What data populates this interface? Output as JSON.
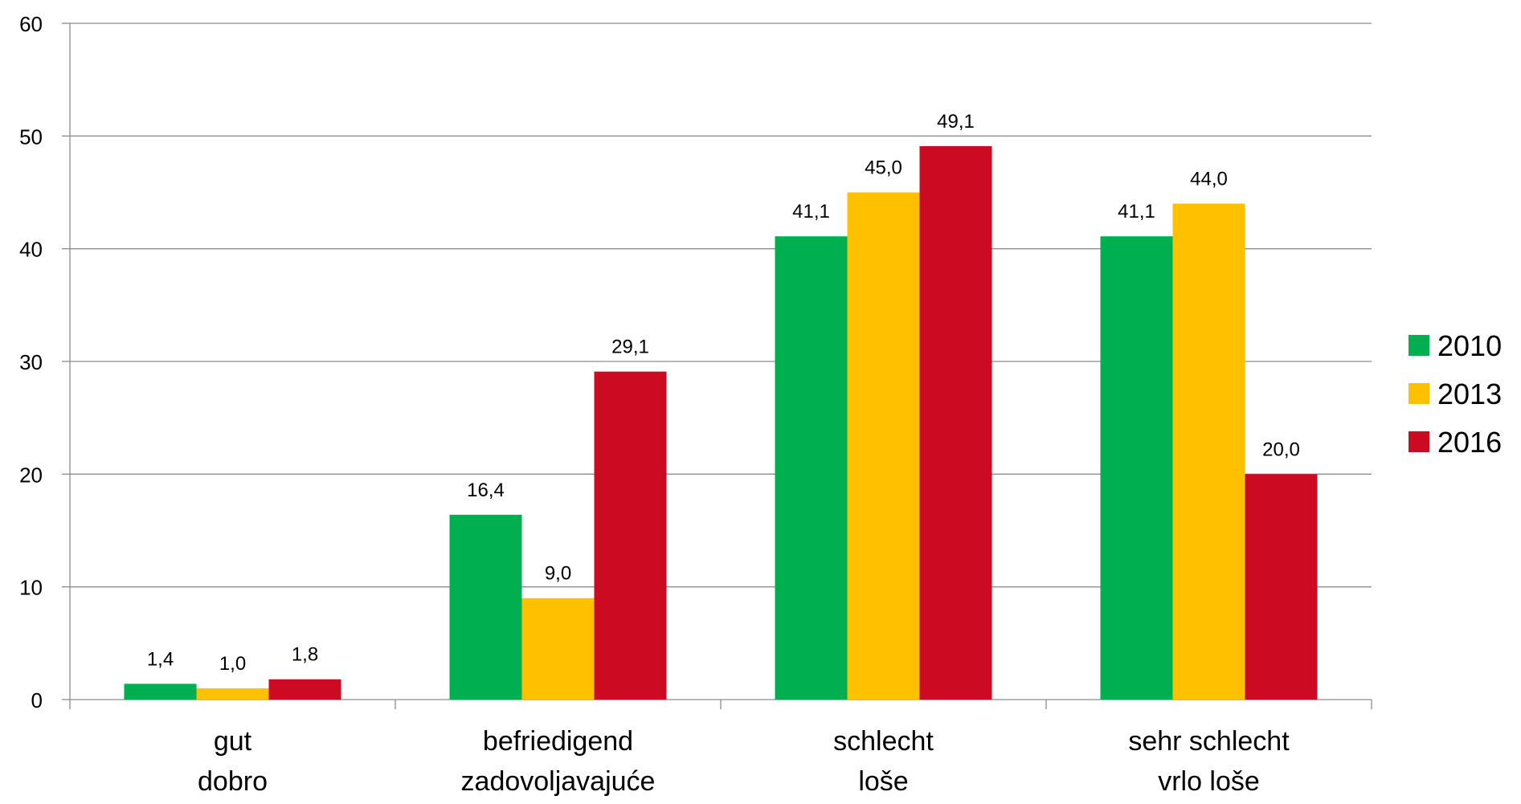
{
  "chart_data": {
    "type": "bar",
    "categories": [
      [
        "gut",
        "dobro"
      ],
      [
        "befriedigend",
        "zadovoljavajuće"
      ],
      [
        "schlecht",
        "loše"
      ],
      [
        "sehr schlecht",
        "vrlo loše"
      ]
    ],
    "series": [
      {
        "name": "2010",
        "color": "#00AF50",
        "values": [
          1.4,
          16.4,
          41.1,
          41.1
        ],
        "labels": [
          "1,4",
          "16,4",
          "41,1",
          "41,1"
        ]
      },
      {
        "name": "2013",
        "color": "#FFC000",
        "values": [
          1.0,
          9.0,
          45.0,
          44.0
        ],
        "labels": [
          "1,0",
          "9,0",
          "45,0",
          "44,0"
        ]
      },
      {
        "name": "2016",
        "color": "#CC0A22",
        "values": [
          1.8,
          29.1,
          49.1,
          20.0
        ],
        "labels": [
          "1,8",
          "29,1",
          "49,1",
          "20,0"
        ]
      }
    ],
    "ylim": [
      0,
      60
    ],
    "yticks": [
      "0",
      "10",
      "20",
      "30",
      "40",
      "50",
      "60"
    ],
    "grid": true,
    "legend_position": "right",
    "title": "",
    "xlabel": "",
    "ylabel": ""
  }
}
